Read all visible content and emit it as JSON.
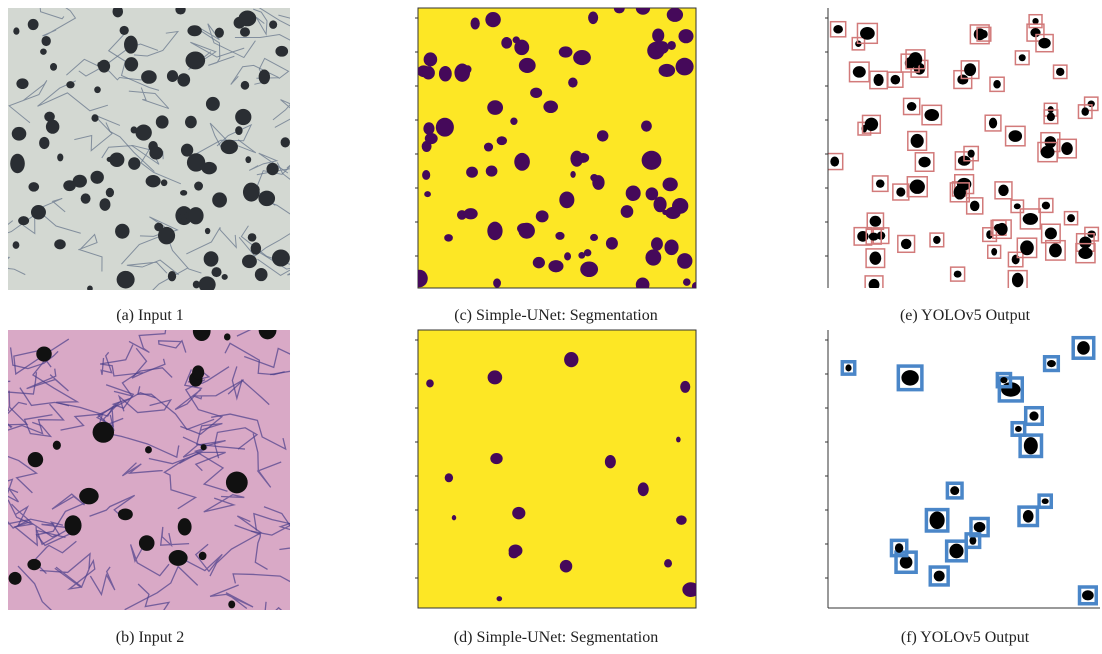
{
  "figure": {
    "panels": [
      {
        "caption": "(a) Input 1"
      },
      {
        "caption": "(c) Simple-UNet: Segmentation"
      },
      {
        "caption": "(e) YOLOv5 Output"
      },
      {
        "caption": "(b) Input 2"
      },
      {
        "caption": "(d) Simple-UNet: Segmentation"
      },
      {
        "caption": "(f) YOLOv5 Output"
      }
    ]
  }
}
